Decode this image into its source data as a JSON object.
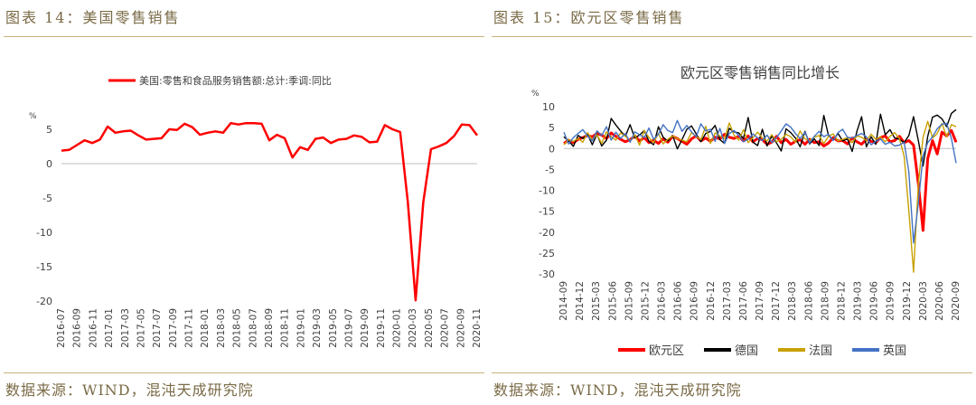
{
  "left": {
    "figure_title": "图表 14：美国零售销售",
    "source": "数据来源：WIND，混沌天成研究院"
  },
  "right": {
    "figure_title": "图表 15：欧元区零售销售",
    "source": "数据来源：WIND，混沌天成研究院"
  },
  "chart_data": [
    {
      "type": "line",
      "title": "",
      "ylabel": "%",
      "ylim": [
        -20,
        5
      ],
      "yticks": [
        5,
        0,
        -5,
        -10,
        -15,
        -20
      ],
      "xticklabels": [
        "2016-07",
        "2016-09",
        "2016-11",
        "2017-01",
        "2017-03",
        "2017-05",
        "2017-07",
        "2017-09",
        "2017-11",
        "2018-01",
        "2018-03",
        "2018-05",
        "2018-07",
        "2018-09",
        "2018-11",
        "2019-01",
        "2019-03",
        "2019-05",
        "2019-07",
        "2019-09",
        "2019-11",
        "2020-01",
        "2020-03",
        "2020-05",
        "2020-07",
        "2020-09",
        "2020-11"
      ],
      "legend_position": "top",
      "series": [
        {
          "name": "美国:零售和食品服务销售额:总计:季调:同比",
          "color": "#ff0000",
          "values": [
            1.9,
            2.0,
            2.7,
            3.4,
            3.0,
            3.5,
            5.4,
            4.5,
            4.7,
            4.8,
            4.1,
            3.5,
            3.6,
            3.7,
            5.0,
            4.9,
            5.8,
            5.3,
            4.2,
            4.5,
            4.7,
            4.5,
            5.9,
            5.7,
            5.9,
            5.9,
            5.8,
            3.4,
            4.2,
            3.7,
            0.9,
            2.4,
            2.0,
            3.6,
            3.8,
            3.0,
            3.5,
            3.6,
            4.1,
            3.9,
            3.1,
            3.2,
            5.6,
            5.0,
            4.6,
            -5.6,
            -19.9,
            -5.6,
            2.1,
            2.5,
            3.0,
            4.0,
            5.7,
            5.6,
            4.1
          ]
        }
      ]
    },
    {
      "type": "line",
      "title": "欧元区零售销售同比增长",
      "ylabel": "%",
      "ylim": [
        -30,
        10
      ],
      "yticks": [
        10,
        5,
        0,
        -5,
        -10,
        -15,
        -20,
        -25,
        -30
      ],
      "xticklabels": [
        "2014-09",
        "2014-12",
        "2015-03",
        "2015-06",
        "2015-09",
        "2015-12",
        "2016-03",
        "2016-06",
        "2016-09",
        "2016-12",
        "2017-03",
        "2017-06",
        "2017-09",
        "2017-12",
        "2018-03",
        "2018-06",
        "2018-09",
        "2018-12",
        "2019-03",
        "2019-06",
        "2019-09",
        "2019-12",
        "2020-03",
        "2020-06",
        "2020-09"
      ],
      "legend_position": "bottom",
      "series": [
        {
          "name": "欧元区",
          "color": "#ff0000",
          "values": [
            1.2,
            2.0,
            1.4,
            2.2,
            2.6,
            3.1,
            2.8,
            3.6,
            3.2,
            2.4,
            3.7,
            2.9,
            2.2,
            1.6,
            2.1,
            3.0,
            1.8,
            2.6,
            1.4,
            2.0,
            1.2,
            2.3,
            1.5,
            2.9,
            2.4,
            1.7,
            1.0,
            2.3,
            3.0,
            1.8,
            2.5,
            1.7,
            2.7,
            2.3,
            3.4,
            2.7,
            2.4,
            2.9,
            1.8,
            3.0,
            1.6,
            2.4,
            2.1,
            1.0,
            1.5,
            2.9,
            1.4,
            2.2,
            1.0,
            1.7,
            2.1,
            1.0,
            2.2,
            1.4,
            1.6,
            0.6,
            1.3,
            2.6,
            1.8,
            1.9,
            1.1,
            2.5,
            1.6,
            1.0,
            2.2,
            1.7,
            1.4,
            2.6,
            3.0,
            1.6,
            1.9,
            2.9,
            1.4,
            1.9,
            0.8,
            -8.4,
            -19.6,
            -2.4,
            1.9,
            -1.3,
            3.9,
            3.0,
            4.3,
            1.5
          ]
        },
        {
          "name": "德国",
          "color": "#000000",
          "values": [
            2.8,
            1.8,
            0.5,
            3.1,
            2.4,
            3.4,
            0.9,
            3.4,
            0.6,
            2.0,
            7.2,
            5.6,
            4.2,
            2.9,
            5.7,
            2.5,
            3.2,
            4.3,
            1.7,
            0.9,
            5.2,
            2.7,
            1.8,
            3.1,
            -0.1,
            2.1,
            4.6,
            5.4,
            3.5,
            1.6,
            3.6,
            4.1,
            5.5,
            2.1,
            1.2,
            4.8,
            4.0,
            3.7,
            2.4,
            7.4,
            1.5,
            0.7,
            4.6,
            0.6,
            3.0,
            1.3,
            -0.6,
            4.7,
            3.8,
            2.5,
            0.4,
            4.1,
            1.1,
            2.3,
            0.7,
            7.9,
            3.1,
            2.0,
            3.6,
            1.8,
            2.3,
            -0.7,
            4.1,
            7.6,
            0.4,
            2.8,
            1.0,
            8.2,
            3.3,
            4.5,
            2.5,
            2.2,
            1.4,
            3.1,
            7.6,
            1.9,
            -4.2,
            2.9,
            7.5,
            8.0,
            7.1,
            5.2,
            8.4,
            9.3
          ]
        },
        {
          "name": "法国",
          "color": "#c8a100",
          "values": [
            0.9,
            2.1,
            1.7,
            2.4,
            1.5,
            3.8,
            2.1,
            3.3,
            1.2,
            4.0,
            2.8,
            2.0,
            3.7,
            2.9,
            1.8,
            3.3,
            0.8,
            4.3,
            2.6,
            1.4,
            3.6,
            1.1,
            2.2,
            3.0,
            2.4,
            2.0,
            1.6,
            3.8,
            2.9,
            2.1,
            5.3,
            1.2,
            3.7,
            3.0,
            2.4,
            6.1,
            3.2,
            2.0,
            4.5,
            1.4,
            2.6,
            3.9,
            2.5,
            1.8,
            3.3,
            1.6,
            2.2,
            3.4,
            2.8,
            1.5,
            4.2,
            2.3,
            1.9,
            2.7,
            3.1,
            1.2,
            2.9,
            3.5,
            1.8,
            2.2,
            2.6,
            1.4,
            3.0,
            2.7,
            1.9,
            3.4,
            2.2,
            2.8,
            1.6,
            2.9,
            3.8,
            2.4,
            -1.9,
            -15.0,
            -29.6,
            -8.5,
            2.7,
            6.5,
            2.5,
            3.6,
            6.0,
            2.8,
            5.7,
            5.2
          ]
        },
        {
          "name": "英国",
          "color": "#4472c4",
          "values": [
            3.9,
            1.1,
            2.6,
            3.6,
            4.5,
            3.0,
            1.8,
            4.2,
            3.1,
            5.2,
            2.0,
            3.9,
            2.4,
            3.6,
            1.5,
            4.0,
            3.3,
            2.6,
            4.9,
            2.2,
            3.4,
            5.7,
            4.3,
            3.8,
            6.7,
            4.1,
            5.5,
            4.0,
            2.8,
            5.9,
            4.2,
            4.6,
            1.7,
            4.8,
            1.2,
            3.6,
            4.3,
            3.1,
            1.6,
            2.2,
            3.5,
            2.5,
            1.9,
            3.2,
            1.4,
            2.6,
            4.2,
            5.9,
            5.1,
            3.6,
            2.4,
            3.9,
            1.3,
            2.9,
            4.1,
            2.8,
            3.4,
            1.9,
            3.8,
            4.6,
            2.7,
            2.5,
            3.1,
            3.6,
            2.8,
            0.9,
            1.7,
            2.3,
            1.0,
            1.5,
            0.6,
            0.8,
            1.5,
            -5.6,
            -22.6,
            -13.1,
            -1.7,
            1.4,
            2.8,
            4.7,
            5.8,
            6.0,
            2.4,
            -3.5
          ]
        }
      ]
    }
  ]
}
